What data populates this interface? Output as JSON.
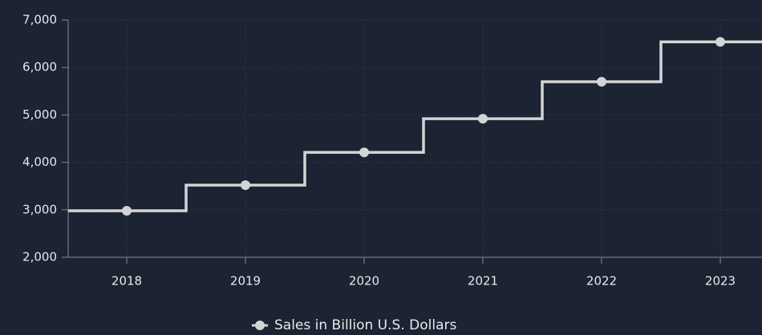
{
  "chart_data": {
    "type": "step",
    "categories": [
      "2018",
      "2019",
      "2020",
      "2021",
      "2022",
      "2023"
    ],
    "series": [
      {
        "name": "Sales in Billion U.S. Dollars",
        "color": "#d4d4d4",
        "values": [
          2980,
          3520,
          4210,
          4920,
          5700,
          6540
        ]
      }
    ],
    "ylim": [
      2000,
      7000
    ],
    "yticks": [
      {
        "value": 2000,
        "label": "2,000"
      },
      {
        "value": 3000,
        "label": "3,000"
      },
      {
        "value": 4000,
        "label": "4,000"
      },
      {
        "value": 5000,
        "label": "5,000"
      },
      {
        "value": 6000,
        "label": "6,000"
      },
      {
        "value": 7000,
        "label": "7,000"
      }
    ],
    "grid": true,
    "legend": "bottom"
  }
}
